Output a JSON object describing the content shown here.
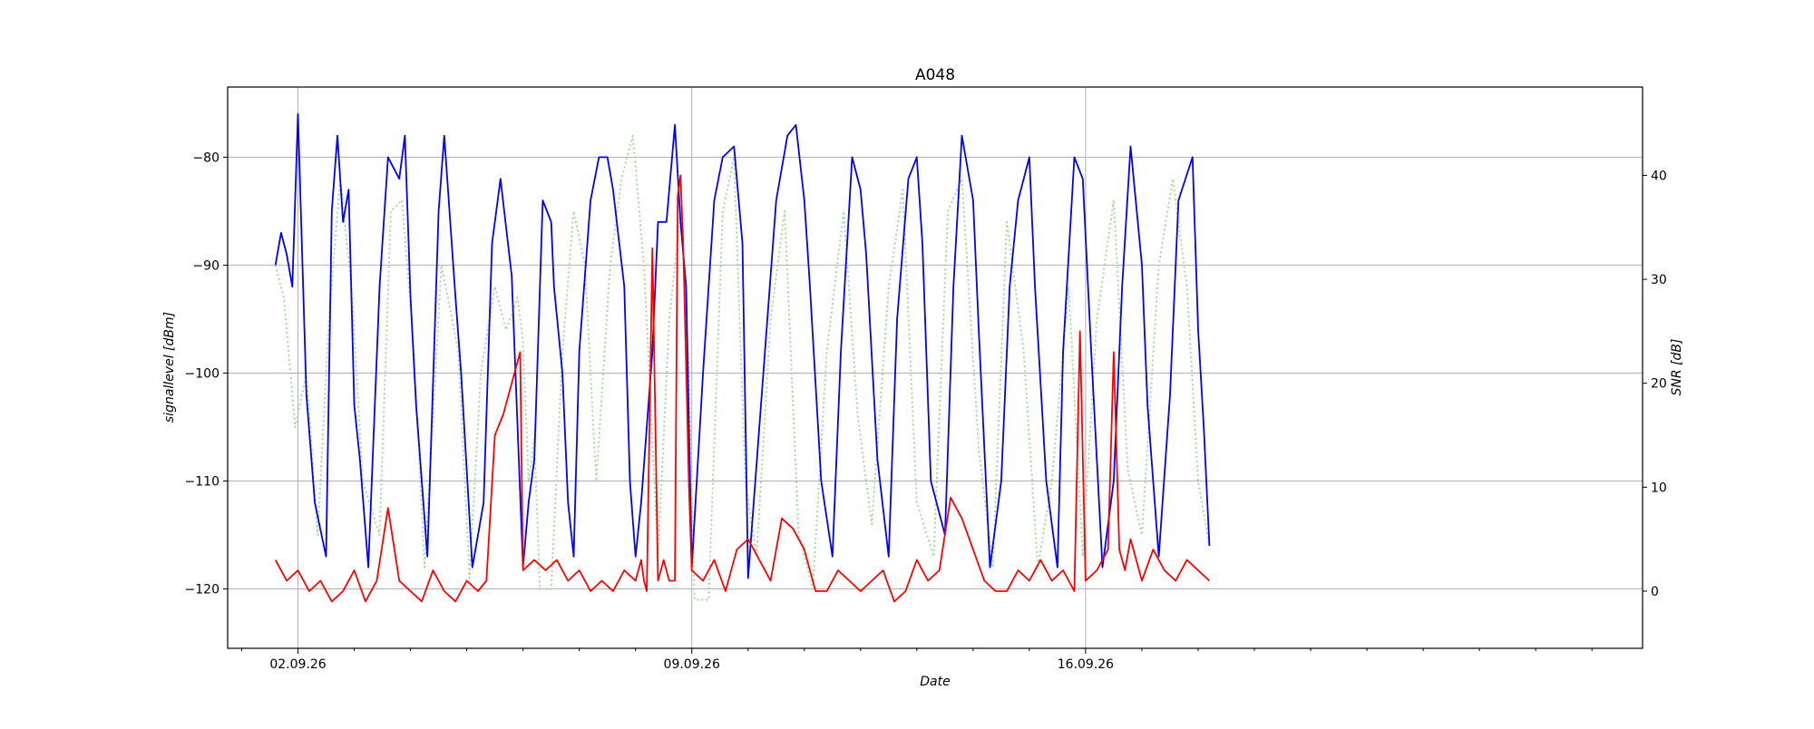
{
  "chart_data": {
    "type": "line",
    "title": "A048",
    "xlabel": "Date",
    "ylabel": "signallevel [dBm]",
    "y2label": "SNR [dB]",
    "x_unit": "days (Sept 2026)",
    "xlim": [
      30.75,
      55.9
    ],
    "ylim": [
      -125.5,
      -73.5
    ],
    "y2lim": [
      -5.5,
      48.5
    ],
    "x_tick_values": [
      32,
      39,
      46
    ],
    "x_tick_labels": [
      "02.09.26",
      "09.09.26",
      "16.09.26"
    ],
    "y_ticks": [
      -80,
      -90,
      -100,
      -110,
      -120
    ],
    "y2_ticks": [
      40,
      30,
      20,
      10,
      0
    ],
    "grid": true,
    "series": [
      {
        "axis": "left",
        "color": "#0000ff",
        "style": "solid",
        "x": [
          31.6,
          31.7,
          31.8,
          31.9,
          32.0,
          32.15,
          32.3,
          32.5,
          32.6,
          32.7,
          32.8,
          32.9,
          33.0,
          33.1,
          33.25,
          33.45,
          33.6,
          33.8,
          33.9,
          34.0,
          34.1,
          34.3,
          34.5,
          34.6,
          34.8,
          34.9,
          35.1,
          35.3,
          35.45,
          35.6,
          35.8,
          36.0,
          36.1,
          36.2,
          36.35,
          36.5,
          36.55,
          36.7,
          36.8,
          36.9,
          37.0,
          37.2,
          37.35,
          37.5,
          37.6,
          37.8,
          37.9,
          38.0,
          38.1,
          38.3,
          38.4,
          38.55,
          38.7,
          38.8,
          38.9,
          39.0,
          39.2,
          39.4,
          39.55,
          39.75,
          39.9,
          40.0,
          40.1,
          40.3,
          40.5,
          40.7,
          40.85,
          41.0,
          41.1,
          41.3,
          41.5,
          41.65,
          41.85,
          42.0,
          42.1,
          42.3,
          42.5,
          42.65,
          42.85,
          43.0,
          43.1,
          43.25,
          43.5,
          43.65,
          43.8,
          44.0,
          44.1,
          44.3,
          44.5,
          44.65,
          44.8,
          45.0,
          45.1,
          45.3,
          45.5,
          45.6,
          45.8,
          45.95,
          46.1,
          46.3,
          46.5,
          46.65,
          46.8,
          47.0,
          47.1,
          47.3,
          47.5,
          47.65,
          47.9,
          48.0,
          48.1,
          48.2
        ],
        "y": [
          -90,
          -87,
          -89,
          -92,
          -76,
          -102,
          -112,
          -117,
          -85,
          -78,
          -86,
          -83,
          -103,
          -108,
          -118,
          -92,
          -80,
          -82,
          -78,
          -93,
          -103,
          -117,
          -85,
          -78,
          -93,
          -100,
          -118,
          -112,
          -88,
          -82,
          -91,
          -118,
          -112,
          -108,
          -84,
          -86,
          -92,
          -100,
          -112,
          -117,
          -98,
          -84,
          -80,
          -80,
          -83,
          -92,
          -110,
          -117,
          -112,
          -98,
          -86,
          -86,
          -77,
          -86,
          -92,
          -118,
          -100,
          -84,
          -80,
          -79,
          -88,
          -119,
          -112,
          -98,
          -84,
          -78,
          -77,
          -84,
          -92,
          -110,
          -117,
          -98,
          -80,
          -83,
          -89,
          -108,
          -117,
          -95,
          -82,
          -80,
          -88,
          -110,
          -115,
          -92,
          -78,
          -84,
          -96,
          -118,
          -110,
          -92,
          -84,
          -80,
          -92,
          -110,
          -118,
          -98,
          -80,
          -82,
          -98,
          -118,
          -110,
          -92,
          -79,
          -90,
          -103,
          -117,
          -102,
          -84,
          -80,
          -96,
          -105,
          -116
        ]
      },
      {
        "axis": "right",
        "color": "#ff0000",
        "style": "solid",
        "x": [
          31.6,
          31.8,
          32.0,
          32.2,
          32.4,
          32.6,
          32.8,
          33.0,
          33.2,
          33.4,
          33.6,
          33.8,
          34.0,
          34.2,
          34.4,
          34.6,
          34.8,
          35.0,
          35.2,
          35.35,
          35.5,
          35.65,
          35.8,
          35.95,
          36.0,
          36.2,
          36.4,
          36.6,
          36.8,
          37.0,
          37.2,
          37.4,
          37.6,
          37.8,
          38.0,
          38.1,
          38.15,
          38.2,
          38.3,
          38.4,
          38.5,
          38.6,
          38.7,
          38.75,
          38.8,
          38.85,
          38.95,
          39.0,
          39.2,
          39.4,
          39.6,
          39.8,
          40.0,
          40.2,
          40.4,
          40.6,
          40.8,
          41.0,
          41.2,
          41.4,
          41.6,
          41.8,
          42.0,
          42.2,
          42.4,
          42.6,
          42.8,
          43.0,
          43.2,
          43.4,
          43.6,
          43.8,
          44.0,
          44.2,
          44.4,
          44.6,
          44.8,
          45.0,
          45.2,
          45.4,
          45.6,
          45.8,
          45.9,
          46.0,
          46.2,
          46.4,
          46.5,
          46.6,
          46.7,
          46.8,
          47.0,
          47.2,
          47.4,
          47.6,
          47.8,
          48.0,
          48.2
        ],
        "y": [
          3,
          1,
          2,
          0,
          1,
          -1,
          0,
          2,
          -1,
          1,
          8,
          1,
          0,
          -1,
          2,
          0,
          -1,
          1,
          0,
          1,
          15,
          17,
          20,
          23,
          2,
          3,
          2,
          3,
          1,
          2,
          0,
          1,
          0,
          2,
          1,
          3,
          1,
          0,
          33,
          1,
          3,
          1,
          1,
          38,
          40,
          33,
          10,
          2,
          1,
          3,
          0,
          4,
          5,
          3,
          1,
          7,
          6,
          4,
          0,
          0,
          2,
          1,
          0,
          1,
          2,
          -1,
          0,
          3,
          1,
          2,
          9,
          7,
          4,
          1,
          0,
          0,
          2,
          1,
          3,
          1,
          2,
          0,
          25,
          1,
          2,
          4,
          23,
          4,
          2,
          5,
          1,
          4,
          2,
          1,
          3,
          2,
          1
        ]
      },
      {
        "axis": "left",
        "color": "#a8d8a0",
        "style": "dotted",
        "x": [
          31.6,
          31.75,
          31.95,
          32.15,
          32.35,
          32.55,
          32.75,
          32.95,
          33.15,
          33.45,
          33.65,
          33.85,
          34.05,
          34.25,
          34.55,
          34.85,
          35.05,
          35.25,
          35.5,
          35.7,
          35.9,
          36.0,
          36.1,
          36.2,
          36.3,
          36.5,
          36.7,
          36.9,
          37.1,
          37.3,
          37.55,
          37.75,
          37.95,
          38.15,
          38.4,
          38.6,
          38.8,
          38.95,
          39.05,
          39.3,
          39.55,
          39.75,
          39.95,
          40.15,
          40.4,
          40.65,
          40.9,
          41.15,
          41.4,
          41.7,
          41.95,
          42.2,
          42.5,
          42.75,
          43.0,
          43.3,
          43.55,
          43.8,
          44.1,
          44.35,
          44.6,
          44.9,
          45.15,
          45.4,
          45.7,
          45.95,
          46.2,
          46.5,
          46.75,
          47.0,
          47.3,
          47.55,
          47.8,
          48.0,
          48.2
        ],
        "y": [
          -90,
          -93,
          -105,
          -100,
          -115,
          -95,
          -82,
          -92,
          -110,
          -115,
          -85,
          -84,
          -97,
          -118,
          -90,
          -98,
          -119,
          -100,
          -92,
          -96,
          -93,
          -97,
          -110,
          -106,
          -120,
          -120,
          -98,
          -85,
          -90,
          -110,
          -90,
          -82,
          -78,
          -90,
          -117,
          -95,
          -85,
          -100,
          -121,
          -121,
          -85,
          -80,
          -110,
          -117,
          -95,
          -85,
          -115,
          -120,
          -98,
          -85,
          -104,
          -114,
          -92,
          -83,
          -112,
          -117,
          -85,
          -82,
          -107,
          -118,
          -86,
          -98,
          -118,
          -110,
          -92,
          -117,
          -95,
          -84,
          -109,
          -115,
          -90,
          -82,
          -92,
          -110,
          -116
        ]
      }
    ]
  }
}
